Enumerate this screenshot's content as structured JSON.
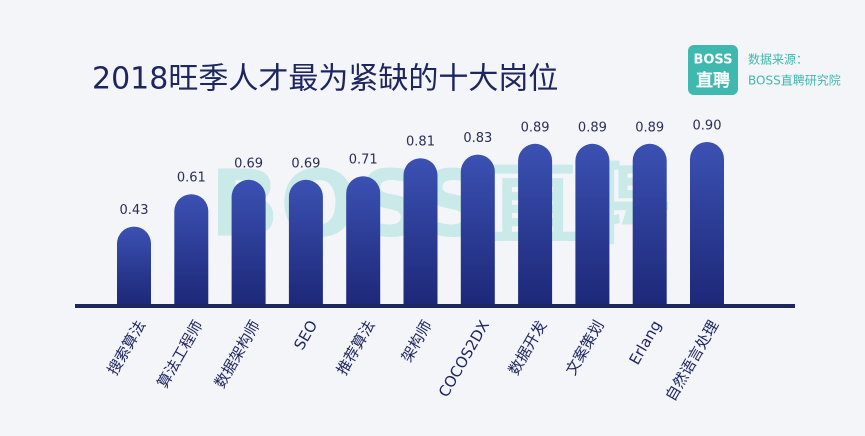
{
  "chart_data": {
    "type": "bar",
    "title": "2018旺季人才最为紧缺的十大岗位",
    "categories": [
      "搜索算法",
      "算法工程师",
      "数据架构师",
      "SEO",
      "推荐算法",
      "架构师",
      "COCOS2DX",
      "数据开发",
      "文案策划",
      "Erlang",
      "自然语言处理"
    ],
    "values": [
      0.43,
      0.61,
      0.69,
      0.69,
      0.71,
      0.81,
      0.83,
      0.89,
      0.89,
      0.89,
      0.9
    ],
    "value_labels": [
      "0.43",
      "0.61",
      "0.69",
      "0.69",
      "0.71",
      "0.81",
      "0.83",
      "0.89",
      "0.89",
      "0.89",
      "0.90"
    ],
    "color": "#2b3a94"
  },
  "logo": {
    "line1": "BOSS",
    "line2": "直聘"
  },
  "source": {
    "label": "数据来源：",
    "name": "BOSS直聘研究院"
  },
  "watermark": "BOSS直聘"
}
